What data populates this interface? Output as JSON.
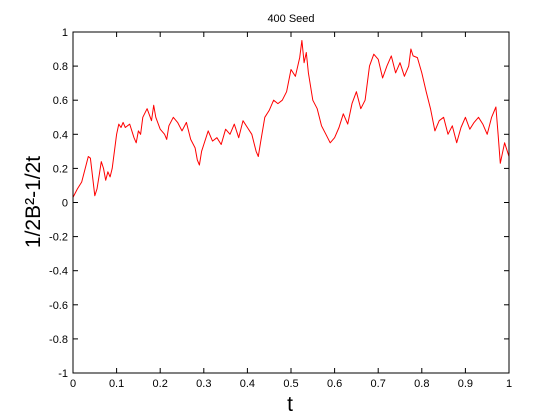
{
  "chart_data": {
    "type": "line",
    "title": "400 Seed",
    "xlabel": "t",
    "ylabel": "1/2B²-1/2t",
    "xlim": [
      0,
      1
    ],
    "ylim": [
      -1,
      1
    ],
    "xticks": [
      0,
      0.1,
      0.2,
      0.3,
      0.4,
      0.5,
      0.6,
      0.7,
      0.8,
      0.9,
      1
    ],
    "xtick_labels": [
      "0",
      "0.1",
      "0.2",
      "0.3",
      "0.4",
      "0.5",
      "0.6",
      "0.7",
      "0.8",
      "0.9",
      "1"
    ],
    "yticks": [
      -1,
      -0.8,
      -0.6,
      -0.4,
      -0.2,
      0,
      0.2,
      0.4,
      0.6,
      0.8,
      1
    ],
    "ytick_labels": [
      "-1",
      "-0.8",
      "-0.6",
      "-0.4",
      "-0.2",
      "0",
      "0.2",
      "0.4",
      "0.6",
      "0.8",
      "1"
    ],
    "grid": false,
    "series": [
      {
        "color": "#ff0000",
        "x": [
          0,
          0.01,
          0.02,
          0.03,
          0.035,
          0.04,
          0.045,
          0.05,
          0.055,
          0.06,
          0.065,
          0.07,
          0.075,
          0.08,
          0.085,
          0.09,
          0.1,
          0.105,
          0.11,
          0.115,
          0.12,
          0.13,
          0.14,
          0.145,
          0.15,
          0.155,
          0.16,
          0.17,
          0.18,
          0.185,
          0.19,
          0.2,
          0.21,
          0.215,
          0.22,
          0.23,
          0.24,
          0.25,
          0.26,
          0.27,
          0.28,
          0.285,
          0.29,
          0.295,
          0.3,
          0.31,
          0.32,
          0.33,
          0.34,
          0.35,
          0.36,
          0.37,
          0.38,
          0.39,
          0.4,
          0.41,
          0.42,
          0.425,
          0.43,
          0.44,
          0.45,
          0.46,
          0.47,
          0.48,
          0.49,
          0.5,
          0.51,
          0.52,
          0.525,
          0.53,
          0.535,
          0.54,
          0.55,
          0.56,
          0.57,
          0.58,
          0.59,
          0.6,
          0.61,
          0.62,
          0.63,
          0.64,
          0.65,
          0.66,
          0.67,
          0.68,
          0.69,
          0.7,
          0.71,
          0.72,
          0.73,
          0.74,
          0.75,
          0.76,
          0.77,
          0.775,
          0.78,
          0.79,
          0.8,
          0.81,
          0.82,
          0.83,
          0.84,
          0.85,
          0.86,
          0.87,
          0.88,
          0.89,
          0.9,
          0.91,
          0.92,
          0.93,
          0.94,
          0.95,
          0.96,
          0.97,
          0.975,
          0.98,
          0.99,
          1.0
        ],
        "y": [
          0.03,
          0.08,
          0.12,
          0.22,
          0.27,
          0.26,
          0.15,
          0.04,
          0.08,
          0.16,
          0.24,
          0.2,
          0.13,
          0.18,
          0.15,
          0.2,
          0.4,
          0.46,
          0.44,
          0.47,
          0.44,
          0.46,
          0.38,
          0.35,
          0.42,
          0.4,
          0.5,
          0.55,
          0.48,
          0.57,
          0.5,
          0.43,
          0.4,
          0.37,
          0.45,
          0.5,
          0.47,
          0.42,
          0.47,
          0.37,
          0.32,
          0.25,
          0.22,
          0.3,
          0.34,
          0.42,
          0.36,
          0.38,
          0.34,
          0.43,
          0.4,
          0.46,
          0.38,
          0.48,
          0.44,
          0.4,
          0.3,
          0.27,
          0.35,
          0.5,
          0.54,
          0.6,
          0.58,
          0.6,
          0.65,
          0.78,
          0.74,
          0.85,
          0.95,
          0.82,
          0.88,
          0.76,
          0.6,
          0.55,
          0.45,
          0.4,
          0.35,
          0.38,
          0.44,
          0.52,
          0.46,
          0.58,
          0.65,
          0.55,
          0.6,
          0.8,
          0.87,
          0.84,
          0.73,
          0.8,
          0.86,
          0.76,
          0.82,
          0.74,
          0.8,
          0.9,
          0.86,
          0.85,
          0.76,
          0.65,
          0.55,
          0.42,
          0.48,
          0.5,
          0.4,
          0.45,
          0.35,
          0.44,
          0.5,
          0.43,
          0.47,
          0.5,
          0.46,
          0.4,
          0.5,
          0.56,
          0.4,
          0.23,
          0.35,
          0.27
        ]
      }
    ]
  }
}
